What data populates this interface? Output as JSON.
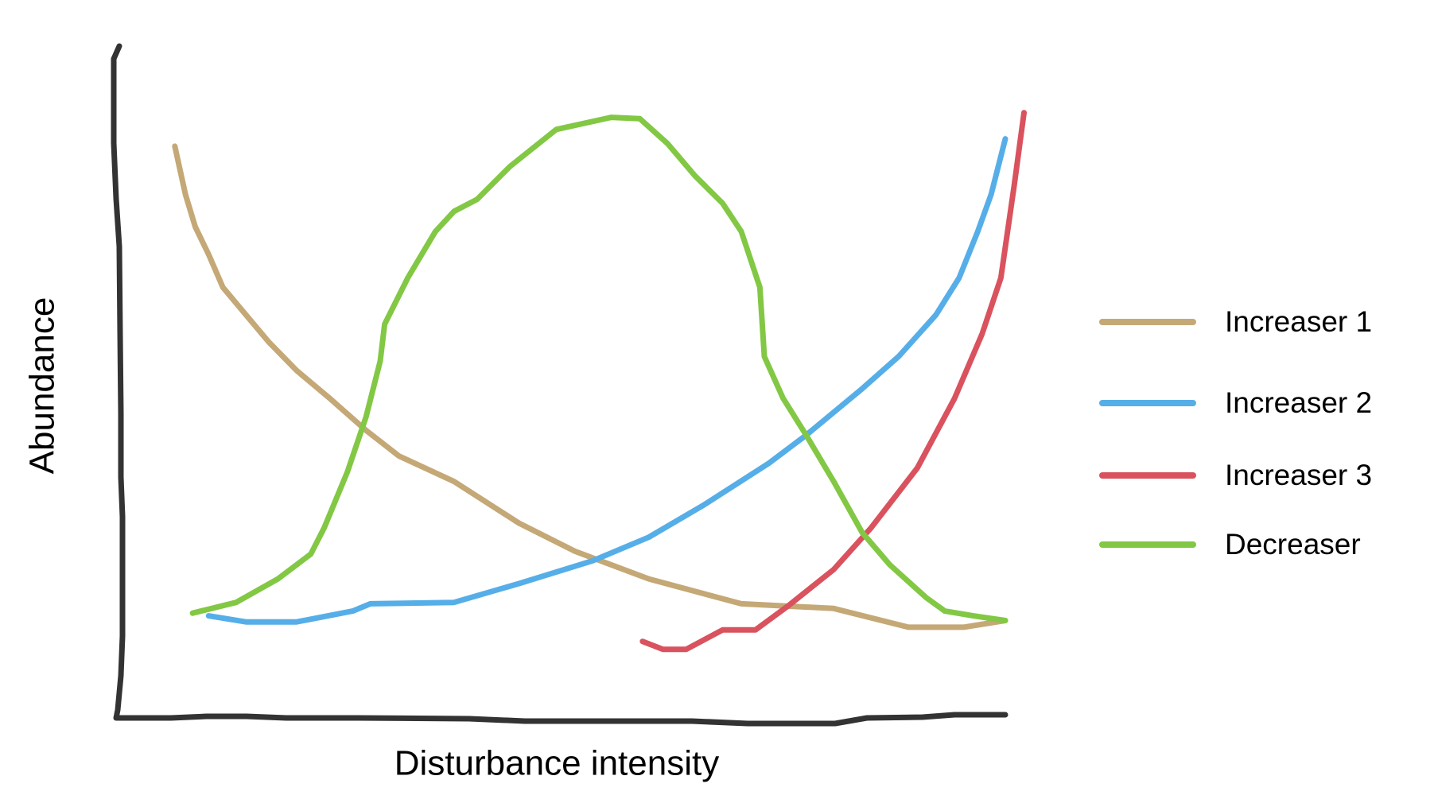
{
  "chart_data": {
    "type": "line",
    "xlabel": "Disturbance intensity",
    "ylabel": "Abundance",
    "xlim": [
      0,
      100
    ],
    "ylim": [
      0,
      100
    ],
    "legend": "right",
    "series": [
      {
        "name": "Increaser 1",
        "color": "#c4a876",
        "x": [
          6.6,
          7.8,
          8.9,
          10.4,
          12.0,
          14.6,
          17.2,
          20.3,
          24.0,
          28.1,
          31.8,
          38.0,
          45.3,
          51.6,
          59.9,
          70.3,
          80.7,
          89.1,
          95.3,
          100
        ],
        "values": [
          85.1,
          77.9,
          73.1,
          69.0,
          64.1,
          60.0,
          55.9,
          51.7,
          47.6,
          42.8,
          39.0,
          35.2,
          29.0,
          24.8,
          20.7,
          17.0,
          16.3,
          13.5,
          13.5,
          14.5
        ]
      },
      {
        "name": "Increaser 2",
        "color": "#56aee8",
        "x": [
          10.4,
          14.6,
          20.3,
          26.6,
          28.6,
          38.0,
          45.3,
          53.6,
          59.9,
          66.1,
          73.4,
          77.6,
          83.9,
          88.0,
          92.2,
          94.8,
          96.9,
          98.4,
          100
        ],
        "values": [
          15.2,
          14.3,
          14.3,
          15.9,
          17.0,
          17.2,
          20.0,
          23.4,
          26.9,
          31.7,
          37.9,
          42.1,
          49.0,
          53.8,
          60.0,
          65.5,
          72.4,
          77.9,
          86.2
        ]
      },
      {
        "name": "Increaser 3",
        "color": "#d9525e",
        "x": [
          59.2,
          61.5,
          64.1,
          68.2,
          71.9,
          75.5,
          80.7,
          84.9,
          90.1,
          94.3,
          97.4,
          99.5,
          101.0,
          102.1
        ],
        "values": [
          11.4,
          10.2,
          10.2,
          13.1,
          13.1,
          16.6,
          22.1,
          28.3,
          37.2,
          47.6,
          57.2,
          65.5,
          79.3,
          90.1
        ]
      },
      {
        "name": "Decreaser",
        "color": "#82c844",
        "x": [
          8.6,
          13.5,
          18.2,
          21.9,
          23.4,
          26.0,
          28.1,
          29.7,
          30.2,
          32.8,
          35.9,
          38.0,
          40.6,
          44.3,
          49.5,
          55.7,
          58.9,
          62.0,
          65.1,
          68.2,
          70.3,
          72.4,
          72.9,
          75.0,
          77.6,
          80.7,
          83.9,
          87.0,
          91.1,
          93.2,
          96.4,
          100
        ],
        "values": [
          15.6,
          17.2,
          20.7,
          24.4,
          28.3,
          36.6,
          44.8,
          53.1,
          58.6,
          65.5,
          72.4,
          75.4,
          77.2,
          82.1,
          87.6,
          89.4,
          89.2,
          85.5,
          80.7,
          76.6,
          72.4,
          64.1,
          53.8,
          47.6,
          42.1,
          35.2,
          27.6,
          22.8,
          17.9,
          15.9,
          15.2,
          14.5
        ]
      }
    ]
  }
}
